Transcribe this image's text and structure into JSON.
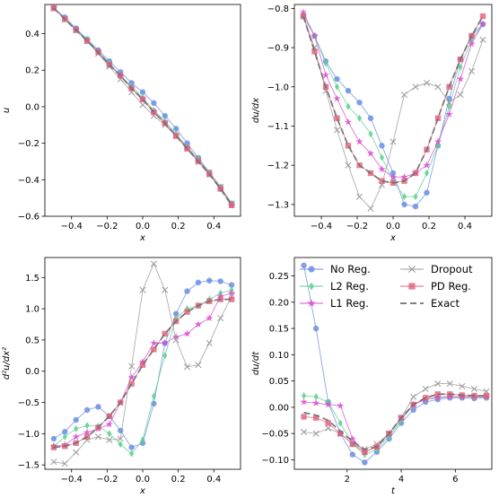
{
  "styles": {
    "No Reg.": {
      "color": "#6b8fe3",
      "marker": "circle",
      "dash": ""
    },
    "L2 Reg.": {
      "color": "#5fcf8f",
      "marker": "diamond",
      "dash": ""
    },
    "L1 Reg.": {
      "color": "#d94fd2",
      "marker": "star",
      "dash": ""
    },
    "Dropout": {
      "color": "#9a9a9a",
      "marker": "x",
      "dash": ""
    },
    "PD Reg.": {
      "color": "#e0607a",
      "marker": "square",
      "dash": ""
    },
    "Exact": {
      "color": "#707070",
      "marker": "none",
      "dash": "7,4"
    }
  },
  "chart_data": [
    {
      "type": "line",
      "xlabel": "x",
      "ylabel": "u",
      "xlim": [
        -0.55,
        0.55
      ],
      "ylim": [
        -0.6,
        0.56
      ],
      "xticks": [
        -0.4,
        -0.2,
        0.0,
        0.2,
        0.4
      ],
      "xtick_labels": [
        "−0.4",
        "−0.2",
        "0.0",
        "0.2",
        "0.4"
      ],
      "yticks": [
        -0.6,
        -0.4,
        -0.2,
        0.0,
        0.2,
        0.4
      ],
      "ytick_labels": [
        "−0.6",
        "−0.4",
        "−0.2",
        "0.0",
        "0.2",
        "0.4"
      ],
      "x": [
        -0.5,
        -0.4375,
        -0.375,
        -0.3125,
        -0.25,
        -0.1875,
        -0.125,
        -0.0625,
        0.0,
        0.0625,
        0.125,
        0.1875,
        0.25,
        0.3125,
        0.375,
        0.4375,
        0.5
      ],
      "series": [
        {
          "name": "No Reg.",
          "values": [
            0.54,
            0.49,
            0.43,
            0.37,
            0.31,
            0.25,
            0.19,
            0.13,
            0.08,
            0.02,
            -0.05,
            -0.12,
            -0.2,
            -0.28,
            -0.36,
            -0.44,
            -0.53
          ]
        },
        {
          "name": "L2 Reg.",
          "values": [
            0.54,
            0.48,
            0.42,
            0.37,
            0.3,
            0.24,
            0.17,
            0.11,
            0.05,
            -0.02,
            -0.08,
            -0.15,
            -0.22,
            -0.29,
            -0.36,
            -0.44,
            -0.53
          ]
        },
        {
          "name": "L1 Reg.",
          "values": [
            0.54,
            0.48,
            0.42,
            0.36,
            0.3,
            0.23,
            0.17,
            0.1,
            0.04,
            -0.03,
            -0.09,
            -0.16,
            -0.23,
            -0.3,
            -0.37,
            -0.45,
            -0.54
          ]
        },
        {
          "name": "Dropout",
          "values": [
            0.54,
            0.48,
            0.42,
            0.36,
            0.29,
            0.22,
            0.15,
            0.08,
            0.01,
            -0.05,
            -0.1,
            -0.16,
            -0.22,
            -0.29,
            -0.36,
            -0.44,
            -0.53
          ]
        },
        {
          "name": "PD Reg.",
          "values": [
            0.54,
            0.48,
            0.42,
            0.36,
            0.3,
            0.23,
            0.17,
            0.1,
            0.04,
            -0.03,
            -0.09,
            -0.16,
            -0.23,
            -0.3,
            -0.37,
            -0.45,
            -0.54
          ]
        },
        {
          "name": "Exact",
          "values": [
            0.54,
            0.48,
            0.42,
            0.36,
            0.3,
            0.23,
            0.17,
            0.1,
            0.04,
            -0.03,
            -0.09,
            -0.16,
            -0.23,
            -0.3,
            -0.37,
            -0.45,
            -0.54
          ]
        }
      ]
    },
    {
      "type": "line",
      "xlabel": "x",
      "ylabel": "du/dx",
      "xlim": [
        -0.55,
        0.55
      ],
      "ylim": [
        -1.33,
        -0.79
      ],
      "xticks": [
        -0.4,
        -0.2,
        0.0,
        0.2,
        0.4
      ],
      "xtick_labels": [
        "−0.4",
        "−0.2",
        "0.0",
        "0.2",
        "0.4"
      ],
      "yticks": [
        -1.3,
        -1.2,
        -1.1,
        -1.0,
        -0.9,
        -0.8
      ],
      "ytick_labels": [
        "−1.3",
        "−1.2",
        "−1.1",
        "−1.0",
        "−0.9",
        "−0.8"
      ],
      "x": [
        -0.5,
        -0.4375,
        -0.375,
        -0.3125,
        -0.25,
        -0.1875,
        -0.125,
        -0.0625,
        0.0,
        0.0625,
        0.125,
        0.1875,
        0.25,
        0.3125,
        0.375,
        0.4375,
        0.5
      ],
      "series": [
        {
          "name": "No Reg.",
          "values": [
            -0.82,
            -0.87,
            -0.935,
            -0.98,
            -1.01,
            -1.04,
            -1.08,
            -1.15,
            -1.22,
            -1.3,
            -1.305,
            -1.27,
            -1.15,
            -1.03,
            -0.93,
            -0.87,
            -0.84
          ]
        },
        {
          "name": "L2 Reg.",
          "values": [
            -0.82,
            -0.87,
            -0.94,
            -1.0,
            -1.05,
            -1.08,
            -1.12,
            -1.18,
            -1.24,
            -1.28,
            -1.28,
            -1.22,
            -1.15,
            -1.05,
            -0.95,
            -0.88,
            -0.84
          ]
        },
        {
          "name": "L1 Reg.",
          "values": [
            -0.81,
            -0.87,
            -0.97,
            -1.03,
            -1.09,
            -1.14,
            -1.17,
            -1.21,
            -1.23,
            -1.23,
            -1.22,
            -1.2,
            -1.14,
            -1.07,
            -0.98,
            -0.89,
            -0.84
          ]
        },
        {
          "name": "Dropout",
          "values": [
            -0.82,
            -0.9,
            -1.01,
            -1.11,
            -1.2,
            -1.28,
            -1.31,
            -1.25,
            -1.14,
            -1.02,
            -1.0,
            -0.99,
            -1.0,
            -1.04,
            -1.02,
            -0.96,
            -0.88
          ]
        },
        {
          "name": "PD Reg.",
          "values": [
            -0.82,
            -0.91,
            -1.0,
            -1.08,
            -1.15,
            -1.2,
            -1.22,
            -1.24,
            -1.245,
            -1.24,
            -1.22,
            -1.16,
            -1.08,
            -1.0,
            -0.93,
            -0.87,
            -0.82
          ]
        },
        {
          "name": "Exact",
          "values": [
            -0.82,
            -0.91,
            -1.0,
            -1.08,
            -1.15,
            -1.2,
            -1.22,
            -1.24,
            -1.245,
            -1.24,
            -1.22,
            -1.16,
            -1.08,
            -1.0,
            -0.93,
            -0.87,
            -0.82
          ]
        }
      ]
    },
    {
      "type": "line",
      "xlabel": "x",
      "ylabel": "d²u/dx²",
      "xlim": [
        -0.55,
        0.55
      ],
      "ylim": [
        -1.57,
        1.82
      ],
      "xticks": [
        -0.4,
        -0.2,
        0.0,
        0.2,
        0.4
      ],
      "xtick_labels": [
        "−0.4",
        "−0.2",
        "0.0",
        "0.2",
        "0.4"
      ],
      "yticks": [
        -1.5,
        -1.0,
        -0.5,
        0.0,
        0.5,
        1.0,
        1.5
      ],
      "ytick_labels": [
        "−1.5",
        "−1.0",
        "−0.5",
        "0.0",
        "0.5",
        "1.0",
        "1.5"
      ],
      "x": [
        -0.5,
        -0.4375,
        -0.375,
        -0.3125,
        -0.25,
        -0.1875,
        -0.125,
        -0.0625,
        0.0,
        0.0625,
        0.125,
        0.1875,
        0.25,
        0.3125,
        0.375,
        0.4375,
        0.5
      ],
      "series": [
        {
          "name": "No Reg.",
          "values": [
            -1.08,
            -0.97,
            -0.78,
            -0.62,
            -0.57,
            -0.72,
            -0.95,
            -1.22,
            -1.15,
            -0.52,
            0.45,
            0.92,
            1.28,
            1.42,
            1.45,
            1.44,
            1.38
          ]
        },
        {
          "name": "L2 Reg.",
          "values": [
            -1.2,
            -1.05,
            -0.92,
            -0.87,
            -0.88,
            -1.0,
            -1.17,
            -1.32,
            -1.1,
            -0.4,
            0.25,
            0.85,
            1.0,
            1.05,
            1.15,
            1.25,
            1.3
          ]
        },
        {
          "name": "L1 Reg.",
          "values": [
            -1.2,
            -1.18,
            -1.05,
            -0.98,
            -0.92,
            -0.85,
            -0.5,
            -0.1,
            0.15,
            0.45,
            0.45,
            0.55,
            0.6,
            0.75,
            0.85,
            1.2,
            1.25
          ]
        },
        {
          "name": "Dropout",
          "values": [
            -1.45,
            -1.48,
            -1.3,
            -1.1,
            -1.05,
            -1.1,
            -1.08,
            0.08,
            1.3,
            1.72,
            1.3,
            0.5,
            0.07,
            0.1,
            0.45,
            0.85,
            1.2
          ]
        },
        {
          "name": "PD Reg.",
          "values": [
            -1.22,
            -1.2,
            -1.15,
            -1.05,
            -0.9,
            -0.72,
            -0.5,
            -0.2,
            0.1,
            0.35,
            0.6,
            0.8,
            0.95,
            1.05,
            1.12,
            1.15,
            1.15
          ]
        },
        {
          "name": "Exact",
          "values": [
            -1.22,
            -1.2,
            -1.15,
            -1.05,
            -0.9,
            -0.72,
            -0.5,
            -0.2,
            0.1,
            0.35,
            0.6,
            0.8,
            0.95,
            1.05,
            1.12,
            1.15,
            1.15
          ]
        }
      ]
    },
    {
      "type": "line",
      "xlabel": "t",
      "ylabel": "du/dt",
      "xlim": [
        0.05,
        7.35
      ],
      "ylim": [
        -0.118,
        0.285
      ],
      "xticks": [
        2,
        4,
        6
      ],
      "xtick_labels": [
        "2",
        "4",
        "6"
      ],
      "yticks": [
        -0.1,
        -0.05,
        0.0,
        0.05,
        0.1,
        0.15,
        0.2,
        0.25
      ],
      "ytick_labels": [
        "−0.10",
        "−0.05",
        "0.00",
        "0.05",
        "0.10",
        "0.15",
        "0.20",
        "0.25"
      ],
      "x": [
        0.4,
        0.85,
        1.3,
        1.75,
        2.2,
        2.65,
        3.1,
        3.55,
        4.0,
        4.45,
        4.9,
        5.35,
        5.8,
        6.25,
        6.7,
        7.15
      ],
      "series": [
        {
          "name": "No Reg.",
          "values": [
            0.27,
            0.15,
            0.01,
            -0.05,
            -0.09,
            -0.105,
            -0.085,
            -0.06,
            -0.03,
            -0.005,
            0.01,
            0.015,
            0.018,
            0.018,
            0.017,
            0.018
          ]
        },
        {
          "name": "L2 Reg.",
          "values": [
            0.022,
            0.02,
            0.01,
            -0.03,
            -0.07,
            -0.09,
            -0.08,
            -0.055,
            -0.025,
            0.005,
            0.015,
            0.02,
            0.02,
            0.02,
            0.02,
            0.02
          ]
        },
        {
          "name": "L1 Reg.",
          "values": [
            0.01,
            0.008,
            0.005,
            0.003,
            -0.06,
            -0.085,
            -0.075,
            -0.05,
            -0.02,
            0.005,
            0.015,
            0.018,
            0.02,
            0.02,
            0.02,
            0.02
          ]
        },
        {
          "name": "Dropout",
          "values": [
            -0.047,
            -0.05,
            -0.04,
            -0.05,
            -0.07,
            -0.08,
            -0.07,
            -0.05,
            -0.02,
            0.02,
            0.035,
            0.045,
            0.045,
            0.04,
            0.035,
            0.03
          ]
        },
        {
          "name": "PD Reg.",
          "values": [
            -0.018,
            -0.02,
            -0.03,
            -0.05,
            -0.07,
            -0.085,
            -0.075,
            -0.05,
            -0.02,
            0.005,
            0.018,
            0.025,
            0.025,
            0.023,
            0.022,
            0.022
          ]
        },
        {
          "name": "Exact",
          "values": [
            -0.01,
            -0.015,
            -0.025,
            -0.045,
            -0.065,
            -0.08,
            -0.075,
            -0.05,
            -0.02,
            0.005,
            0.018,
            0.025,
            0.025,
            0.023,
            0.022,
            0.022
          ]
        }
      ],
      "legend": {
        "placement": "upper-right",
        "entries": [
          "No Reg.",
          "L2 Reg.",
          "L1 Reg.",
          "Dropout",
          "PD Reg.",
          "Exact"
        ]
      }
    }
  ]
}
